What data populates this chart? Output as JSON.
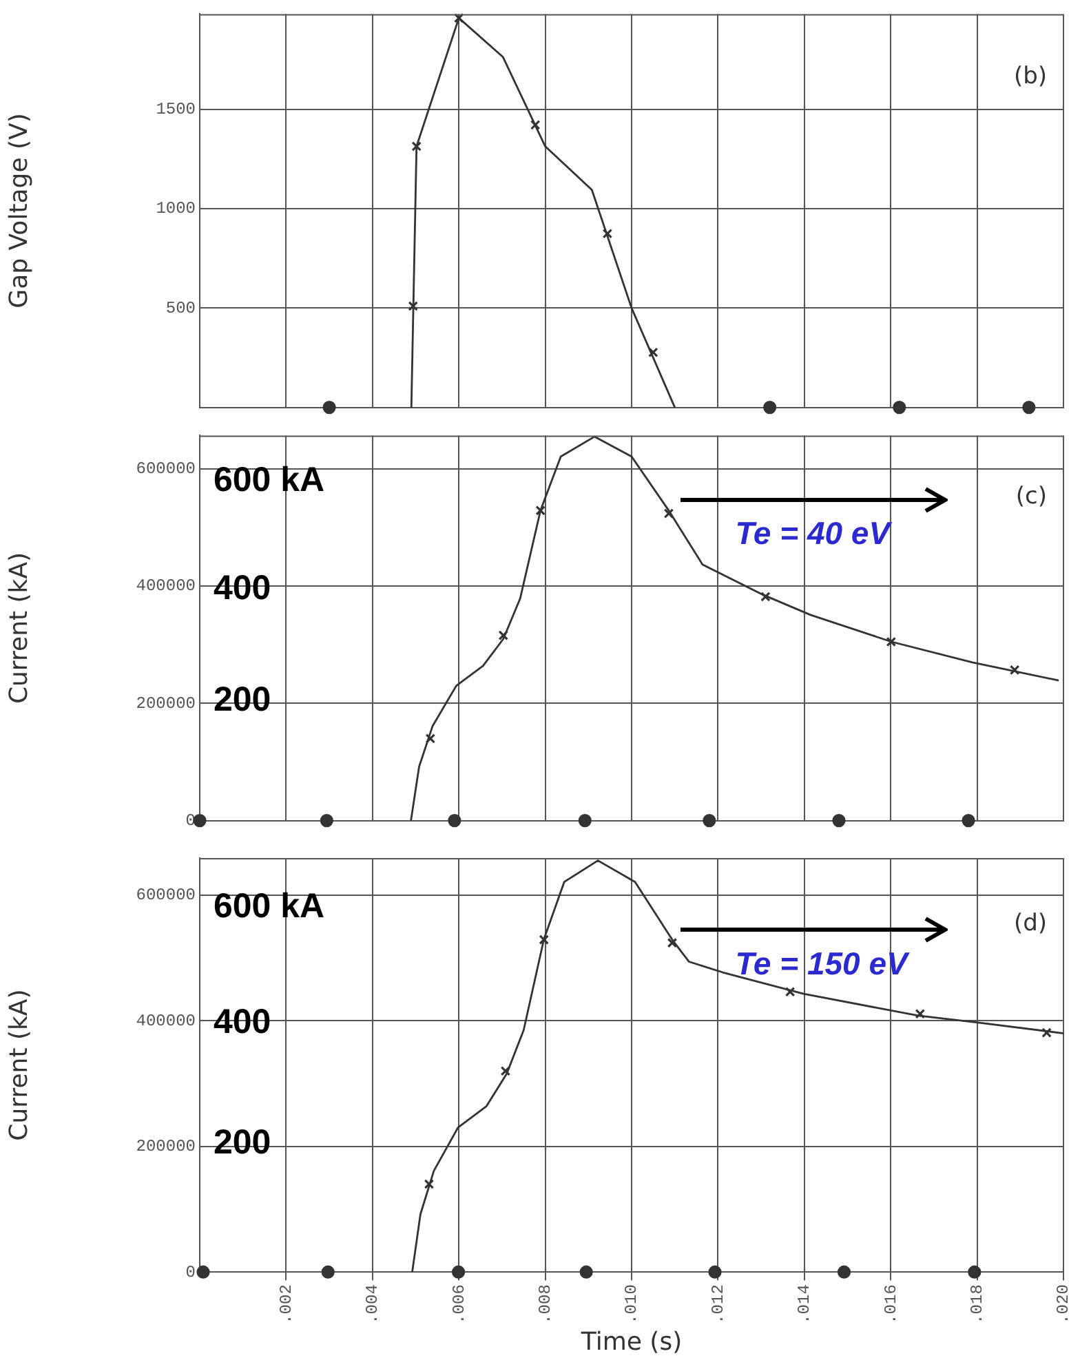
{
  "chart_data": [
    {
      "type": "line",
      "ylabel": "Gap Voltage (V)",
      "xlim": [
        0,
        0.02
      ],
      "ylim": [
        0,
        1980
      ],
      "xticks": [
        {
          "value": 0.002,
          "label": null
        },
        {
          "value": 0.004,
          "label": null
        },
        {
          "value": 0.006,
          "label": null
        },
        {
          "value": 0.008,
          "label": null
        },
        {
          "value": 0.01,
          "label": null
        },
        {
          "value": 0.012,
          "label": null
        },
        {
          "value": 0.014,
          "label": null
        },
        {
          "value": 0.016,
          "label": null
        },
        {
          "value": 0.018,
          "label": null
        },
        {
          "value": 0.02,
          "label": null
        }
      ],
      "yticks": [
        500,
        1000,
        1500
      ],
      "tick_labels": "y",
      "grid": true,
      "legend": false,
      "annotations": [
        "(b)"
      ],
      "series": [
        {
          "type": "line",
          "marker": "none",
          "color": "#333333",
          "x": [
            0.0049,
            0.00502,
            0.006,
            0.00702,
            0.008,
            0.00908,
            0.01,
            0.011
          ],
          "values": [
            0,
            1314,
            1960,
            1764,
            1314,
            1095,
            500,
            0
          ]
        },
        {
          "type": "scatter",
          "marker": "cross",
          "color": "#333333",
          "x": [
            0.00494,
            0.00502,
            0.006,
            0.00777,
            0.00944,
            0.0105
          ],
          "values": [
            510,
            1314,
            1960,
            1422,
            875,
            277
          ]
        },
        {
          "type": "scatter",
          "marker": "circle",
          "color": "#333333",
          "x": [
            0.003,
            0.0132,
            0.0162,
            0.0192
          ],
          "values": [
            0,
            0,
            0,
            0
          ]
        }
      ]
    },
    {
      "type": "line",
      "ylabel": "Current (kA)",
      "xlim": [
        0,
        0.02
      ],
      "ylim": [
        0,
        657000
      ],
      "xticks": [
        {
          "value": 0.002,
          "label": null
        },
        {
          "value": 0.004,
          "label": null
        },
        {
          "value": 0.006,
          "label": null
        },
        {
          "value": 0.008,
          "label": null
        },
        {
          "value": 0.01,
          "label": null
        },
        {
          "value": 0.012,
          "label": null
        },
        {
          "value": 0.014,
          "label": null
        },
        {
          "value": 0.016,
          "label": null
        },
        {
          "value": 0.018,
          "label": null
        },
        {
          "value": 0.02,
          "label": null
        }
      ],
      "yticks": [
        0,
        200000,
        400000,
        600000
      ],
      "tick_labels": "y",
      "grid": true,
      "legend": false,
      "annotations": [
        "(c)",
        "600 kA",
        "400",
        "200",
        "Te = 40 eV"
      ],
      "series": [
        {
          "type": "line",
          "marker": "none",
          "color": "#333333",
          "x": [
            0.00489,
            0.00508,
            0.00539,
            0.00594,
            0.00656,
            0.00703,
            0.00742,
            0.00789,
            0.00836,
            0.00914,
            0.01,
            0.01086,
            0.01164,
            0.01305,
            0.01414,
            0.01602,
            0.01789,
            0.01989
          ],
          "values": [
            0,
            92000,
            161000,
            230000,
            264000,
            310000,
            379000,
            529000,
            621000,
            655000,
            621000,
            529000,
            437000,
            385000,
            351000,
            305000,
            270000,
            239000
          ]
        },
        {
          "type": "scatter",
          "marker": "cross",
          "color": "#333333",
          "x": [
            0.00534,
            0.00703,
            0.00789,
            0.01086,
            0.0131,
            0.01601,
            0.01887
          ],
          "values": [
            140000,
            316000,
            529000,
            524000,
            382000,
            305000,
            257000
          ]
        },
        {
          "type": "scatter",
          "marker": "circle",
          "color": "#333333",
          "x": [
            0,
            0.00294,
            0.0059,
            0.00892,
            0.0118,
            0.0148,
            0.0178
          ],
          "values": [
            0,
            0,
            0,
            0,
            0,
            0,
            0
          ]
        }
      ]
    },
    {
      "type": "line",
      "xlabel": "Time (s)",
      "ylabel": "Current (kA)",
      "xlim": [
        0,
        0.02
      ],
      "ylim": [
        0,
        659000
      ],
      "xticks": [
        {
          "value": 0.002,
          "label": ".002"
        },
        {
          "value": 0.004,
          "label": ".004"
        },
        {
          "value": 0.006,
          "label": ".006"
        },
        {
          "value": 0.008,
          "label": ".008"
        },
        {
          "value": 0.01,
          "label": ".010"
        },
        {
          "value": 0.012,
          "label": ".012"
        },
        {
          "value": 0.014,
          "label": ".014"
        },
        {
          "value": 0.016,
          "label": ".016"
        },
        {
          "value": 0.018,
          "label": ".018"
        },
        {
          "value": 0.02,
          "label": ".020"
        }
      ],
      "yticks": [
        0,
        200000,
        400000,
        600000
      ],
      "grid": true,
      "legend": false,
      "annotations": [
        "(d)",
        "600 kA",
        "400",
        "200",
        "Te = 150 eV"
      ],
      "series": [
        {
          "type": "line",
          "marker": "none",
          "color": "#333333",
          "x": [
            0.00492,
            0.00511,
            0.00542,
            0.00598,
            0.00664,
            0.00711,
            0.0075,
            0.00797,
            0.00844,
            0.00922,
            0.01008,
            0.01094,
            0.01133,
            0.01211,
            0.01398,
            0.01664,
            0.01805,
            0.02
          ],
          "values": [
            0,
            92000,
            161000,
            230000,
            264000,
            316000,
            385000,
            530000,
            621000,
            655000,
            621000,
            529000,
            494000,
            477000,
            443000,
            408000,
            397000,
            380000
          ]
        },
        {
          "type": "scatter",
          "marker": "cross",
          "color": "#333333",
          "x": [
            0.00531,
            0.00708,
            0.00797,
            0.01094,
            0.01367,
            0.01668,
            0.01961
          ],
          "values": [
            140000,
            320000,
            529000,
            524000,
            446000,
            411000,
            381000
          ]
        },
        {
          "type": "scatter",
          "marker": "circle",
          "color": "#333333",
          "x": [
            8e-05,
            0.00297,
            0.00599,
            0.00895,
            0.01193,
            0.01492,
            0.01794
          ],
          "values": [
            0,
            0,
            0,
            0,
            0,
            0,
            0
          ]
        }
      ]
    }
  ]
}
